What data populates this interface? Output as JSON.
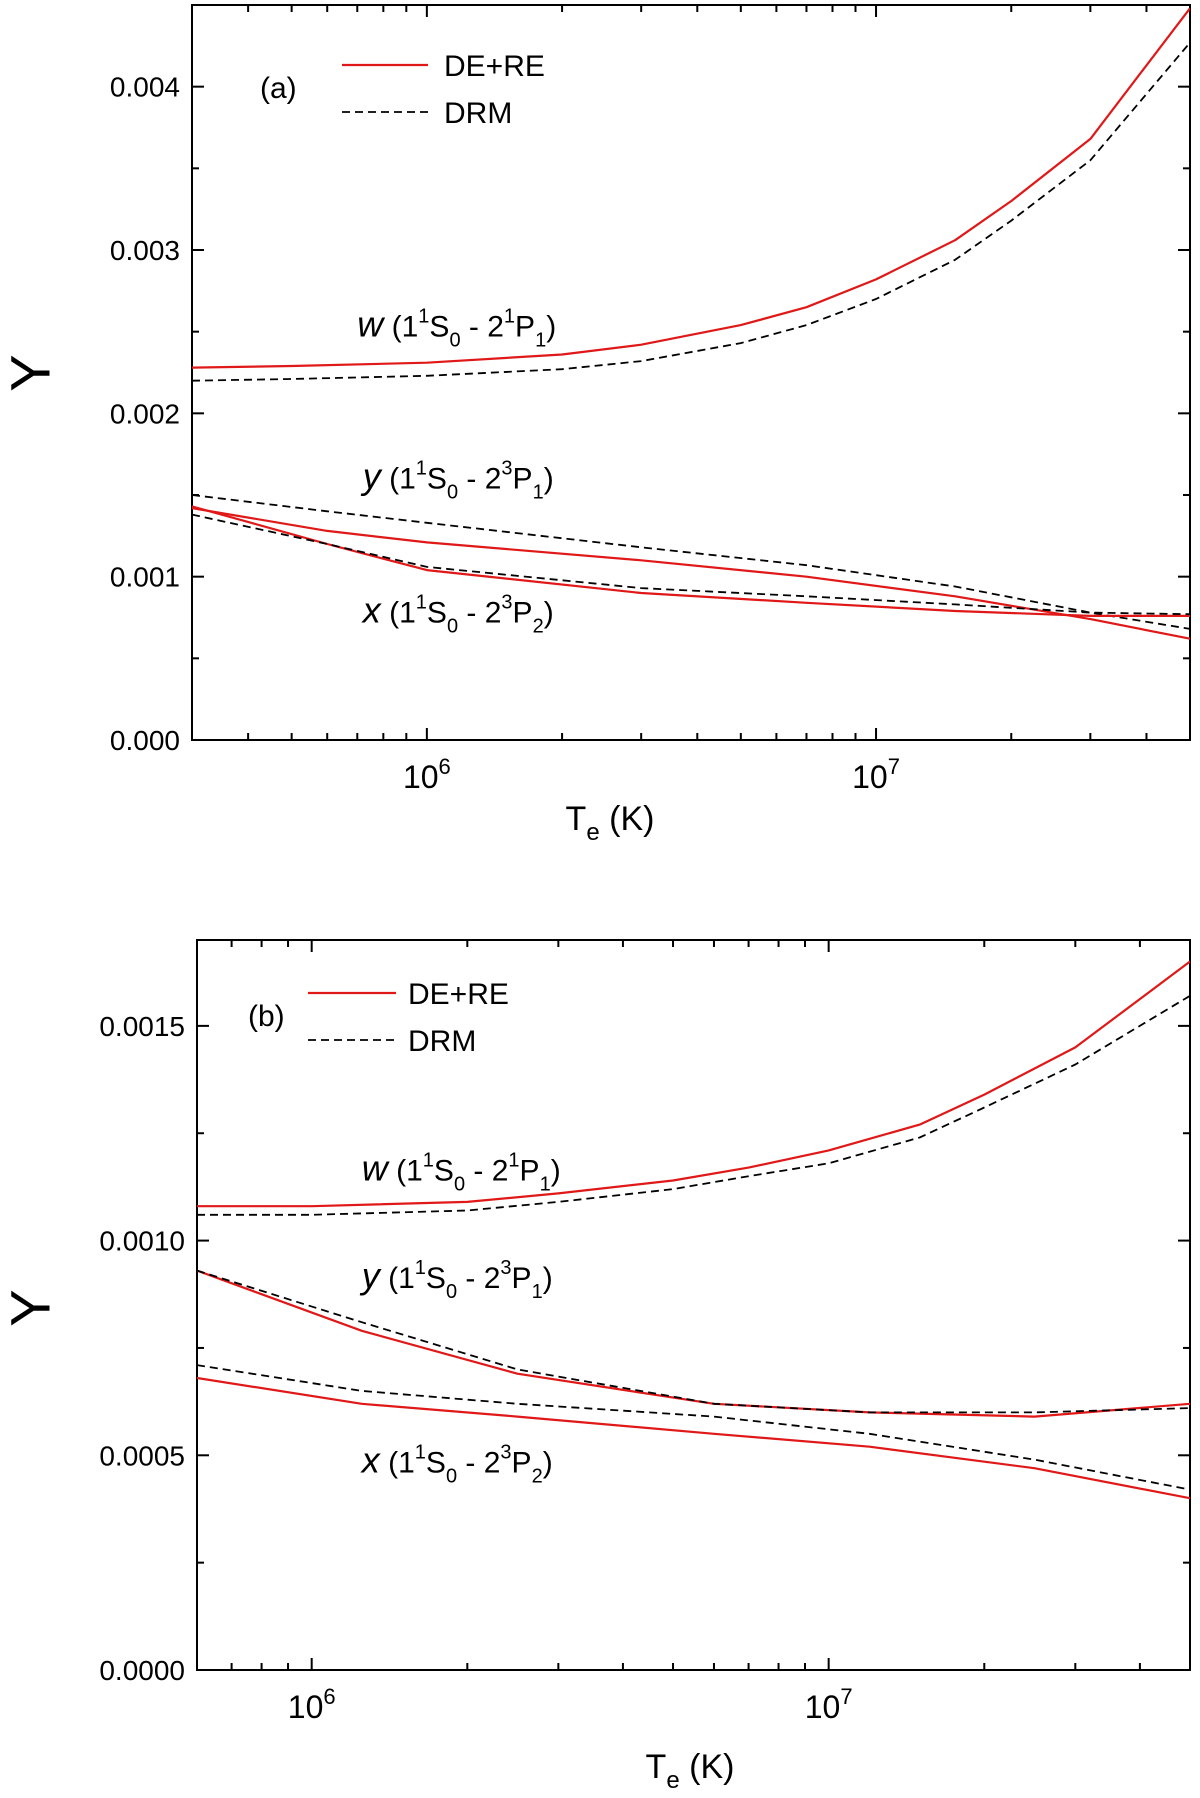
{
  "chart_data": [
    {
      "type": "line",
      "panel_label": "(a)",
      "xscale": "log",
      "xlim": [
        300000,
        50000000
      ],
      "ylim": [
        0,
        0.0045
      ],
      "xlabel": {
        "main": "T",
        "sub": "e",
        "unit": " (K)"
      },
      "ylabel": "Υ",
      "yticks": [
        "0.000",
        "0.001",
        "0.002",
        "0.003",
        "0.004"
      ],
      "ytick_values": [
        0,
        0.001,
        0.002,
        0.003,
        0.004
      ],
      "xticks": [
        {
          "value": 1000000,
          "base": "10",
          "exp": "6"
        },
        {
          "value": 10000000,
          "base": "10",
          "exp": "7"
        }
      ],
      "legend": {
        "placement": "top-left",
        "entries": [
          {
            "label": "DE+RE",
            "color": "#e01818",
            "dash": "solid"
          },
          {
            "label": "DRM",
            "color": "#000000",
            "dash": "dashed"
          }
        ]
      },
      "annotations": [
        {
          "letter": "w",
          "lower": "1",
          "sup1": "1",
          "mid": "S",
          "sub1": "0",
          "dash": " - 2",
          "sup2": "1",
          "upper": "P",
          "sub2": "1",
          "at": [
            700000,
            0.00247
          ]
        },
        {
          "letter": "y",
          "lower": "1",
          "sup1": "1",
          "mid": "S",
          "sub1": "0",
          "dash": " - 2",
          "sup2": "3",
          "upper": "P",
          "sub2": "1",
          "at": [
            720000,
            0.00154
          ]
        },
        {
          "letter": "x",
          "lower": "1",
          "sup1": "1",
          "mid": "S",
          "sub1": "0",
          "dash": " - 2",
          "sup2": "3",
          "upper": "P",
          "sub2": "2",
          "at": [
            720000,
            0.00072
          ]
        }
      ],
      "series": [
        {
          "name": "w DE+RE",
          "style": "DE+RE",
          "x": [
            300000,
            500000,
            1000000,
            2000000,
            3000000,
            5000000,
            7000000,
            10000000,
            15000000,
            20000000,
            30000000,
            50000000
          ],
          "y": [
            0.00228,
            0.00229,
            0.00231,
            0.00236,
            0.00242,
            0.00254,
            0.00265,
            0.00282,
            0.00306,
            0.0033,
            0.00368,
            0.00448
          ]
        },
        {
          "name": "w DRM",
          "style": "DRM",
          "x": [
            300000,
            500000,
            1000000,
            2000000,
            3000000,
            5000000,
            7000000,
            10000000,
            15000000,
            20000000,
            30000000,
            50000000
          ],
          "y": [
            0.0022,
            0.00221,
            0.00223,
            0.00227,
            0.00232,
            0.00243,
            0.00254,
            0.0027,
            0.00294,
            0.00318,
            0.00355,
            0.00427
          ]
        },
        {
          "name": "y DE+RE",
          "style": "DE+RE",
          "x": [
            300000,
            600000,
            1000000,
            3000000,
            7000000,
            15000000,
            30000000,
            50000000
          ],
          "y": [
            0.00142,
            0.00128,
            0.00121,
            0.0011,
            0.001,
            0.00088,
            0.00074,
            0.00062
          ]
        },
        {
          "name": "y DRM",
          "style": "DRM",
          "x": [
            300000,
            600000,
            1000000,
            3000000,
            7000000,
            15000000,
            30000000,
            50000000
          ],
          "y": [
            0.0015,
            0.0014,
            0.00133,
            0.00118,
            0.00107,
            0.00094,
            0.00078,
            0.00068
          ]
        },
        {
          "name": "x DE+RE",
          "style": "DE+RE",
          "x": [
            300000,
            600000,
            1000000,
            3000000,
            7000000,
            15000000,
            30000000,
            50000000
          ],
          "y": [
            0.00143,
            0.0012,
            0.00104,
            0.0009,
            0.00084,
            0.00079,
            0.00076,
            0.00076
          ]
        },
        {
          "name": "x DRM",
          "style": "DRM",
          "x": [
            300000,
            600000,
            1000000,
            3000000,
            7000000,
            15000000,
            30000000,
            50000000
          ],
          "y": [
            0.00138,
            0.0012,
            0.00106,
            0.00093,
            0.00088,
            0.00083,
            0.00078,
            0.00077
          ]
        }
      ]
    },
    {
      "type": "line",
      "panel_label": "(b)",
      "xscale": "log",
      "xlim": [
        600000,
        50000000
      ],
      "ylim": [
        0,
        0.0017
      ],
      "xlabel": {
        "main": "T",
        "sub": "e",
        "unit": " (K)"
      },
      "ylabel": "Υ",
      "yticks": [
        "0.0000",
        "0.0005",
        "0.0010",
        "0.0015"
      ],
      "ytick_values": [
        0,
        0.0005,
        0.001,
        0.0015
      ],
      "xticks": [
        {
          "value": 1000000,
          "base": "10",
          "exp": "6"
        },
        {
          "value": 10000000,
          "base": "10",
          "exp": "7"
        }
      ],
      "legend": {
        "placement": "top-left",
        "entries": [
          {
            "label": "DE+RE",
            "color": "#e01818",
            "dash": "solid"
          },
          {
            "label": "DRM",
            "color": "#000000",
            "dash": "dashed"
          }
        ]
      },
      "annotations": [
        {
          "letter": "w",
          "lower": "1",
          "sup1": "1",
          "mid": "S",
          "sub1": "0",
          "dash": " - 2",
          "sup2": "1",
          "upper": "P",
          "sub2": "1",
          "at": [
            1250000,
            0.00114
          ]
        },
        {
          "letter": "y",
          "lower": "1",
          "sup1": "1",
          "mid": "S",
          "sub1": "0",
          "dash": " - 2",
          "sup2": "3",
          "upper": "P",
          "sub2": "1",
          "at": [
            1250000,
            0.00089
          ]
        },
        {
          "letter": "x",
          "lower": "1",
          "sup1": "1",
          "mid": "S",
          "sub1": "0",
          "dash": " - 2",
          "sup2": "3",
          "upper": "P",
          "sub2": "2",
          "at": [
            1250000,
            0.00046
          ]
        }
      ],
      "series": [
        {
          "name": "w DE+RE",
          "style": "DE+RE",
          "x": [
            600000,
            1000000,
            2000000,
            3000000,
            5000000,
            7000000,
            10000000,
            15000000,
            20000000,
            30000000,
            50000000
          ],
          "y": [
            0.00108,
            0.00108,
            0.00109,
            0.00111,
            0.00114,
            0.00117,
            0.00121,
            0.00127,
            0.00134,
            0.00145,
            0.00165
          ]
        },
        {
          "name": "w DRM",
          "style": "DRM",
          "x": [
            600000,
            1000000,
            2000000,
            3000000,
            5000000,
            7000000,
            10000000,
            15000000,
            20000000,
            30000000,
            50000000
          ],
          "y": [
            0.00106,
            0.00106,
            0.00107,
            0.00109,
            0.00112,
            0.00115,
            0.00118,
            0.00124,
            0.00131,
            0.00141,
            0.00157
          ]
        },
        {
          "name": "y DE+RE",
          "style": "DE+RE",
          "x": [
            600000,
            1250000,
            2500000,
            6000000,
            12000000,
            25000000,
            50000000
          ],
          "y": [
            0.00093,
            0.00079,
            0.00069,
            0.00062,
            0.0006,
            0.00059,
            0.00062
          ]
        },
        {
          "name": "y DRM",
          "style": "DRM",
          "x": [
            600000,
            1250000,
            2500000,
            6000000,
            12000000,
            25000000,
            50000000
          ],
          "y": [
            0.00093,
            0.00081,
            0.0007,
            0.00062,
            0.0006,
            0.0006,
            0.00061
          ]
        },
        {
          "name": "x DE+RE",
          "style": "DE+RE",
          "x": [
            600000,
            1250000,
            2500000,
            6000000,
            12000000,
            25000000,
            50000000
          ],
          "y": [
            0.00068,
            0.00062,
            0.00059,
            0.00055,
            0.00052,
            0.00047,
            0.0004
          ]
        },
        {
          "name": "x DRM",
          "style": "DRM",
          "x": [
            600000,
            1250000,
            2500000,
            6000000,
            12000000,
            25000000,
            50000000
          ],
          "y": [
            0.00071,
            0.00065,
            0.00062,
            0.00059,
            0.00055,
            0.00049,
            0.00042
          ]
        }
      ]
    }
  ]
}
